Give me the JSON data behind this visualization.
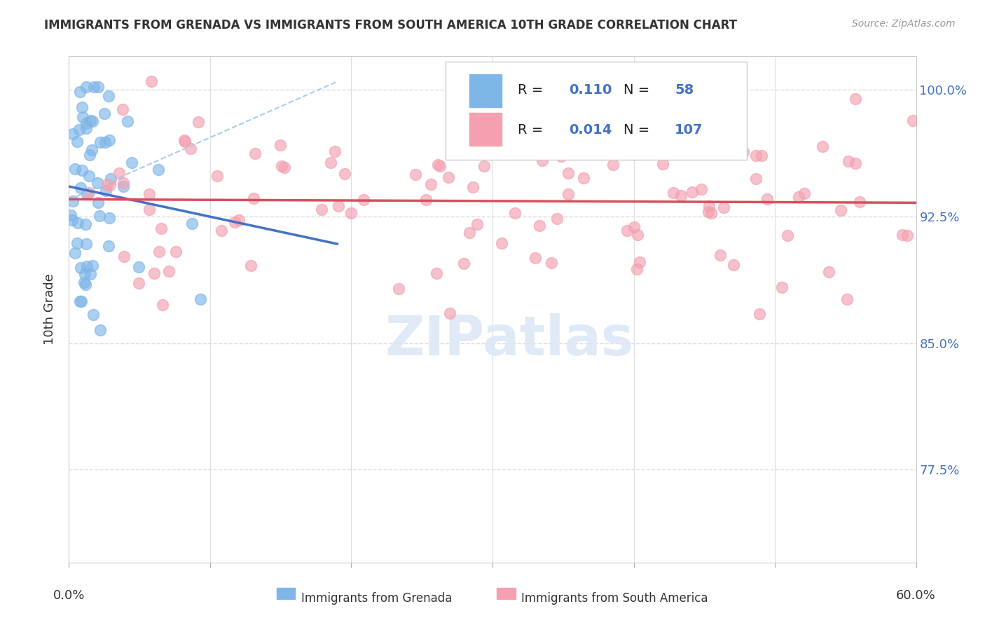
{
  "title": "IMMIGRANTS FROM GRENADA VS IMMIGRANTS FROM SOUTH AMERICA 10TH GRADE CORRELATION CHART",
  "source": "Source: ZipAtlas.com",
  "ylabel": "10th Grade",
  "xlim": [
    0.0,
    0.6
  ],
  "ylim": [
    0.72,
    1.02
  ],
  "yticks": [
    0.775,
    0.85,
    0.925,
    1.0
  ],
  "ytick_labels": [
    "77.5%",
    "85.0%",
    "92.5%",
    "100.0%"
  ],
  "bg_color": "#ffffff",
  "grid_color": "#dddddd",
  "legend_R1": "0.110",
  "legend_N1": "58",
  "legend_R2": "0.014",
  "legend_N2": "107",
  "blue_color": "#7EB6E8",
  "pink_color": "#F4A0B0",
  "trend_blue": "#4472C4",
  "trend_pink": "#D94F5C",
  "trend_dashed_color": "#AACCEE"
}
